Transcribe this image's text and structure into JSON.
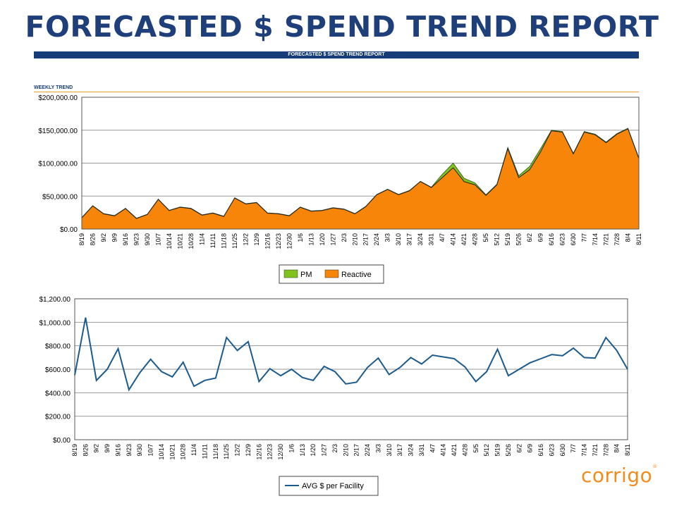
{
  "title": "FORECASTED $ SPEND TREND REPORT",
  "banner": "FORECASTED $ SPEND TREND REPORT",
  "section_label": "WEEKLY TREND",
  "logo": {
    "text": "corrigo",
    "mark": "®"
  },
  "colors": {
    "title": "#1f3f7a",
    "banner": "#163d77",
    "pm": "#7fc31c",
    "reactive": "#f7850a",
    "line": "#1c5b8e",
    "logo": "#f28c1c"
  },
  "chart_data": [
    {
      "type": "area",
      "stacked": true,
      "x": [
        "8/19",
        "8/26",
        "9/2",
        "9/9",
        "9/16",
        "9/23",
        "9/30",
        "10/7",
        "10/14",
        "10/21",
        "10/28",
        "11/4",
        "11/11",
        "11/18",
        "11/25",
        "12/2",
        "12/9",
        "12/16",
        "12/23",
        "12/30",
        "1/6",
        "1/13",
        "1/20",
        "1/27",
        "2/3",
        "2/10",
        "2/17",
        "2/24",
        "3/3",
        "3/10",
        "3/17",
        "3/24",
        "3/31",
        "4/7",
        "4/14",
        "4/21",
        "4/28",
        "5/5",
        "5/12",
        "5/19",
        "5/26",
        "6/2",
        "6/9",
        "6/16",
        "6/23",
        "6/30",
        "7/7",
        "7/14",
        "7/21",
        "7/28",
        "8/4",
        "8/11"
      ],
      "y_ticks": [
        "$0.00",
        "$50,000.00",
        "$100,000.00",
        "$150,000.00",
        "$200,000.00"
      ],
      "ylim": [
        0,
        200000
      ],
      "series": [
        {
          "name": "Reactive",
          "values": [
            17000,
            35000,
            23000,
            20000,
            31000,
            16000,
            22000,
            45000,
            28000,
            33000,
            31000,
            21000,
            24000,
            19000,
            47000,
            38000,
            40000,
            24000,
            23000,
            20000,
            33000,
            27000,
            28000,
            32000,
            30000,
            23000,
            34000,
            52000,
            60000,
            52000,
            58000,
            72000,
            63000,
            78000,
            93000,
            72000,
            67000,
            51000,
            67000,
            122000,
            78000,
            90000,
            117000,
            149000,
            147000,
            114000,
            147000,
            143000,
            131000,
            144000,
            152000,
            107000
          ]
        },
        {
          "name": "PM",
          "values": [
            500,
            500,
            500,
            500,
            500,
            500,
            500,
            500,
            500,
            500,
            500,
            500,
            500,
            500,
            500,
            500,
            500,
            500,
            500,
            500,
            500,
            500,
            500,
            500,
            500,
            500,
            500,
            500,
            500,
            500,
            500,
            500,
            500,
            5000,
            7000,
            5000,
            3000,
            1000,
            1000,
            2000,
            3000,
            5000,
            5000,
            1000,
            1000,
            1000,
            1000,
            1000,
            1000,
            1000,
            1000,
            1000
          ]
        }
      ],
      "legend_position": "bottom-center",
      "grid": true
    },
    {
      "type": "line",
      "x": [
        "8/19",
        "8/26",
        "9/2",
        "9/9",
        "9/16",
        "9/23",
        "9/30",
        "10/7",
        "10/14",
        "10/21",
        "10/28",
        "11/4",
        "11/11",
        "11/18",
        "11/25",
        "12/2",
        "12/9",
        "12/16",
        "12/23",
        "12/30",
        "1/6",
        "1/13",
        "1/20",
        "1/27",
        "2/3",
        "2/10",
        "2/17",
        "2/24",
        "3/3",
        "3/10",
        "3/17",
        "3/24",
        "3/31",
        "4/7",
        "4/14",
        "4/21",
        "4/28",
        "5/5",
        "5/12",
        "5/19",
        "5/26",
        "6/2",
        "6/9",
        "6/16",
        "6/23",
        "6/30",
        "7/7",
        "7/14",
        "7/21",
        "7/28",
        "8/4",
        "8/11"
      ],
      "y_ticks": [
        "$0.00",
        "$200.00",
        "$400.00",
        "$600.00",
        "$800.00",
        "$1,000.00",
        "$1,200.00"
      ],
      "ylim": [
        0,
        1200
      ],
      "series": [
        {
          "name": "AVG $ per Facility",
          "values": [
            550,
            1040,
            505,
            600,
            775,
            425,
            570,
            685,
            580,
            535,
            660,
            455,
            505,
            525,
            870,
            760,
            835,
            495,
            605,
            545,
            600,
            530,
            505,
            625,
            580,
            475,
            490,
            615,
            695,
            555,
            615,
            700,
            645,
            720,
            705,
            690,
            620,
            495,
            580,
            770,
            545,
            600,
            655,
            690,
            725,
            715,
            780,
            700,
            695,
            870,
            760,
            600
          ]
        }
      ],
      "legend_position": "bottom-center",
      "grid": true
    }
  ]
}
